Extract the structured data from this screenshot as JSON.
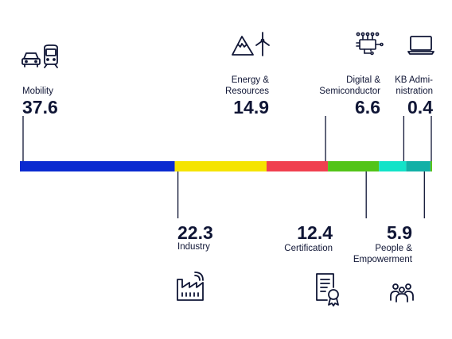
{
  "chart_data": {
    "type": "bar",
    "stacked": true,
    "orientation": "horizontal",
    "categories": [
      "Mobility",
      "Industry",
      "Energy & Resources",
      "Certification",
      "Digital & Semiconductor",
      "People & Empowerment",
      "KB Administration"
    ],
    "values": [
      37.6,
      22.3,
      14.9,
      12.4,
      6.6,
      5.9,
      0.4
    ],
    "label_lines": {
      "mobility": [
        "Mobility"
      ],
      "industry": [
        "Industry"
      ],
      "energy": [
        "Energy &",
        "Resources"
      ],
      "certification": [
        "Certification"
      ],
      "digital": [
        "Digital &",
        "Semiconductor"
      ],
      "people": [
        "People &",
        "Empowerment"
      ],
      "kb": [
        "KB Admi-",
        "nistration"
      ]
    },
    "value_labels": [
      "37.6",
      "22.3",
      "14.9",
      "12.4",
      "6.6",
      "5.9",
      "0.4"
    ],
    "colors": [
      "#0a2ad0",
      "#f5e400",
      "#f0404f",
      "#52c418",
      "#12e3c8",
      "#12b0a6",
      "#5cc41a"
    ],
    "icons": [
      "car-train-icon",
      "factory-icon",
      "mountain-wind-icon",
      "certificate-icon",
      "circuit-chip-icon",
      "people-group-icon",
      "laptop-icon"
    ]
  },
  "colors": {
    "text": "#0f1535",
    "leader": "#0f1535"
  }
}
